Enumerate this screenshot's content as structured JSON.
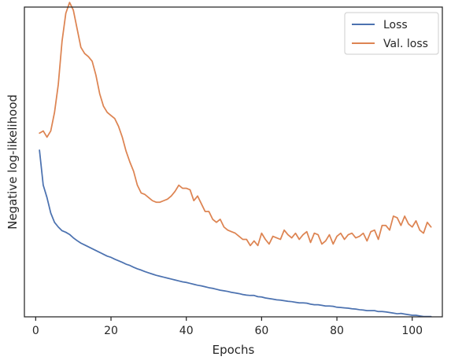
{
  "chart_data": {
    "type": "line",
    "title": "",
    "xlabel": "Epochs",
    "ylabel": "Negative log-likelihood",
    "xlim": [
      -3,
      108
    ],
    "ylim": [
      0,
      100
    ],
    "x_ticks": [
      0,
      20,
      40,
      60,
      80,
      100
    ],
    "y_ticks_shown": false,
    "grid": false,
    "legend_position": "top-right",
    "series": [
      {
        "name": "Loss",
        "color": "#4c72b0",
        "x": [
          1,
          2,
          3,
          4,
          5,
          6,
          7,
          8,
          9,
          10,
          11,
          12,
          13,
          14,
          15,
          16,
          17,
          18,
          19,
          20,
          21,
          22,
          23,
          24,
          25,
          26,
          27,
          28,
          29,
          30,
          31,
          32,
          33,
          34,
          35,
          36,
          37,
          38,
          39,
          40,
          41,
          42,
          43,
          44,
          45,
          46,
          47,
          48,
          49,
          50,
          51,
          52,
          53,
          54,
          55,
          56,
          57,
          58,
          59,
          60,
          61,
          62,
          63,
          64,
          65,
          66,
          67,
          68,
          69,
          70,
          71,
          72,
          73,
          74,
          75,
          76,
          77,
          78,
          79,
          80,
          81,
          82,
          83,
          84,
          85,
          86,
          87,
          88,
          89,
          90,
          91,
          92,
          93,
          94,
          95,
          96,
          97,
          98,
          99,
          100,
          101,
          102,
          103,
          104,
          105
        ],
        "y": [
          53.8,
          42.5,
          38.5,
          33.5,
          30.5,
          29.0,
          27.8,
          27.3,
          26.6,
          25.5,
          24.6,
          23.8,
          23.2,
          22.6,
          22.0,
          21.4,
          20.8,
          20.2,
          19.6,
          19.2,
          18.6,
          18.1,
          17.6,
          17.0,
          16.6,
          16.0,
          15.5,
          15.1,
          14.6,
          14.2,
          13.8,
          13.4,
          13.1,
          12.8,
          12.5,
          12.2,
          11.9,
          11.6,
          11.3,
          11.1,
          10.8,
          10.5,
          10.2,
          10.0,
          9.7,
          9.4,
          9.2,
          8.9,
          8.6,
          8.4,
          8.2,
          7.9,
          7.7,
          7.5,
          7.2,
          7.0,
          6.9,
          6.9,
          6.5,
          6.4,
          6.1,
          5.9,
          5.7,
          5.5,
          5.4,
          5.2,
          5.0,
          4.9,
          4.7,
          4.5,
          4.5,
          4.4,
          4.1,
          3.9,
          3.9,
          3.7,
          3.5,
          3.5,
          3.4,
          3.1,
          3.0,
          2.9,
          2.8,
          2.6,
          2.5,
          2.3,
          2.2,
          2.0,
          2.0,
          2.0,
          1.7,
          1.7,
          1.6,
          1.4,
          1.2,
          1.0,
          1.1,
          0.9,
          0.7,
          0.5,
          0.5,
          0.3,
          0.1,
          0.1,
          0.1
        ]
      },
      {
        "name": "Val. loss",
        "color": "#dd8452",
        "x": [
          1,
          2,
          3,
          4,
          5,
          6,
          7,
          8,
          9,
          10,
          11,
          12,
          13,
          14,
          15,
          16,
          17,
          18,
          19,
          20,
          21,
          22,
          23,
          24,
          25,
          26,
          27,
          28,
          29,
          30,
          31,
          32,
          33,
          34,
          35,
          36,
          37,
          38,
          39,
          40,
          41,
          42,
          43,
          44,
          45,
          46,
          47,
          48,
          49,
          50,
          51,
          52,
          53,
          54,
          55,
          56,
          57,
          58,
          59,
          60,
          61,
          62,
          63,
          64,
          65,
          66,
          67,
          68,
          69,
          70,
          71,
          72,
          73,
          74,
          75,
          76,
          77,
          78,
          79,
          80,
          81,
          82,
          83,
          84,
          85,
          86,
          87,
          88,
          89,
          90,
          91,
          92,
          93,
          94,
          95,
          96,
          97,
          98,
          99,
          100,
          101,
          102,
          103,
          104,
          105
        ],
        "y": [
          59.3,
          60.0,
          58.0,
          60.0,
          66.0,
          75.0,
          89.0,
          98.0,
          101.5,
          99.0,
          93.0,
          87.0,
          85.0,
          84.0,
          82.5,
          78.0,
          72.0,
          68.0,
          66.0,
          65.0,
          64.0,
          61.5,
          58.0,
          53.5,
          50.0,
          47.0,
          42.5,
          40.0,
          39.5,
          38.5,
          37.5,
          37.0,
          37.0,
          37.5,
          38.0,
          39.0,
          40.5,
          42.5,
          41.5,
          41.5,
          41.0,
          37.5,
          39.0,
          36.5,
          34.0,
          34.0,
          31.5,
          30.5,
          31.5,
          29.0,
          28.0,
          27.5,
          27.0,
          26.0,
          25.0,
          25.0,
          23.0,
          24.5,
          23.0,
          27.0,
          25.0,
          23.5,
          26.0,
          25.5,
          25.0,
          28.0,
          26.5,
          25.5,
          27.0,
          25.0,
          26.5,
          27.5,
          24.0,
          27.0,
          26.5,
          23.5,
          24.5,
          26.5,
          23.5,
          26.0,
          27.0,
          25.0,
          26.5,
          27.0,
          25.5,
          26.0,
          27.0,
          24.5,
          27.5,
          28.0,
          25.0,
          29.5,
          29.5,
          28.0,
          32.5,
          32.0,
          29.5,
          32.5,
          30.0,
          29.0,
          31.0,
          28.0,
          27.0,
          30.5,
          29.0
        ]
      }
    ]
  }
}
